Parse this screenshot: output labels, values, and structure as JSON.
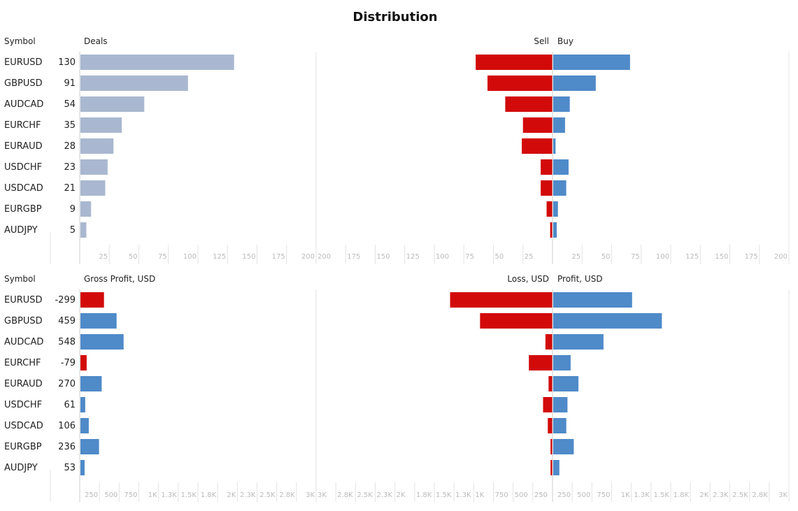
{
  "title": "Distribution",
  "colors": {
    "deals": "#a9b8d0",
    "buy": "#4f8ac9",
    "sell": "#d20a0a",
    "positive": "#4f8ac9",
    "negative": "#d20a0a"
  },
  "chart_data": [
    {
      "type": "bar",
      "symbol_header": "Symbol",
      "left_header": "Deals",
      "right_left_header": "Sell",
      "right_right_header": "Buy",
      "categories": [
        "EURUSD",
        "GBPUSD",
        "AUDCAD",
        "EURCHF",
        "EURAUD",
        "USDCHF",
        "USDCAD",
        "EURGBP",
        "AUDJPY"
      ],
      "values": [
        130,
        91,
        54,
        35,
        28,
        23,
        21,
        9,
        5
      ],
      "value_labels": [
        "130",
        "91",
        "54",
        "35",
        "28",
        "23",
        "21",
        "9",
        "5"
      ],
      "series": [
        {
          "name": "Sell",
          "values": [
            65,
            55,
            40,
            25,
            26,
            10,
            10,
            5,
            2
          ]
        },
        {
          "name": "Buy",
          "values": [
            65,
            36,
            14,
            10,
            2,
            13,
            11,
            4,
            3
          ]
        }
      ],
      "left_xlim": [
        0,
        200
      ],
      "left_ticks": [
        {
          "v": 25,
          "l": "25"
        },
        {
          "v": 50,
          "l": "50"
        },
        {
          "v": 75,
          "l": "75"
        },
        {
          "v": 100,
          "l": "100"
        },
        {
          "v": 125,
          "l": "125"
        },
        {
          "v": 150,
          "l": "150"
        },
        {
          "v": 175,
          "l": "175"
        },
        {
          "v": 200,
          "l": "200"
        }
      ],
      "right_xlim": [
        -200,
        200
      ],
      "right_ticks": [
        {
          "v": -200,
          "l": "200"
        },
        {
          "v": -175,
          "l": "175"
        },
        {
          "v": -150,
          "l": "150"
        },
        {
          "v": -125,
          "l": "125"
        },
        {
          "v": -100,
          "l": "100"
        },
        {
          "v": -75,
          "l": "75"
        },
        {
          "v": -50,
          "l": "50"
        },
        {
          "v": -25,
          "l": "25"
        },
        {
          "v": 25,
          "l": "25"
        },
        {
          "v": 50,
          "l": "50"
        },
        {
          "v": 75,
          "l": "75"
        },
        {
          "v": 100,
          "l": "100"
        },
        {
          "v": 125,
          "l": "125"
        },
        {
          "v": 150,
          "l": "150"
        },
        {
          "v": 175,
          "l": "175"
        },
        {
          "v": 200,
          "l": "200"
        }
      ]
    },
    {
      "type": "bar",
      "symbol_header": "Symbol",
      "left_header": "Gross Profit, USD",
      "right_left_header": "Loss, USD",
      "right_right_header": "Profit, USD",
      "categories": [
        "EURUSD",
        "GBPUSD",
        "AUDCAD",
        "EURCHF",
        "EURAUD",
        "USDCHF",
        "USDCAD",
        "EURGBP",
        "AUDJPY"
      ],
      "values": [
        -299,
        459,
        548,
        -79,
        270,
        61,
        106,
        236,
        53
      ],
      "value_labels": [
        "-299",
        "459",
        "548",
        "-79",
        "270",
        "61",
        "106",
        "236",
        "53"
      ],
      "series": [
        {
          "name": "Loss, USD",
          "values": [
            1300,
            920,
            90,
            300,
            50,
            120,
            60,
            25,
            25
          ]
        },
        {
          "name": "Profit, USD",
          "values": [
            1001,
            1379,
            638,
            221,
            320,
            181,
            166,
            261,
            78
          ]
        }
      ],
      "left_xlim": [
        0,
        3000
      ],
      "left_ticks": [
        {
          "v": 250,
          "l": "250"
        },
        {
          "v": 500,
          "l": "500"
        },
        {
          "v": 750,
          "l": "750"
        },
        {
          "v": 1000,
          "l": "1K"
        },
        {
          "v": 1250,
          "l": "1.3K"
        },
        {
          "v": 1500,
          "l": "1.5K"
        },
        {
          "v": 1750,
          "l": "1.8K"
        },
        {
          "v": 2000,
          "l": "2K"
        },
        {
          "v": 2250,
          "l": "2.3K"
        },
        {
          "v": 2500,
          "l": "2.5K"
        },
        {
          "v": 2750,
          "l": "2.8K"
        },
        {
          "v": 3000,
          "l": "3K"
        }
      ],
      "right_xlim": [
        -3000,
        3000
      ],
      "right_ticks": [
        {
          "v": -3000,
          "l": "3K"
        },
        {
          "v": -2750,
          "l": "2.8K"
        },
        {
          "v": -2500,
          "l": "2.5K"
        },
        {
          "v": -2250,
          "l": "2.3K"
        },
        {
          "v": -2000,
          "l": "2K"
        },
        {
          "v": -1750,
          "l": "1.8K"
        },
        {
          "v": -1500,
          "l": "1.5K"
        },
        {
          "v": -1250,
          "l": "1.3K"
        },
        {
          "v": -1000,
          "l": "1K"
        },
        {
          "v": -750,
          "l": "750"
        },
        {
          "v": -500,
          "l": "500"
        },
        {
          "v": -250,
          "l": "250"
        },
        {
          "v": 250,
          "l": "250"
        },
        {
          "v": 500,
          "l": "500"
        },
        {
          "v": 750,
          "l": "750"
        },
        {
          "v": 1000,
          "l": "1K"
        },
        {
          "v": 1250,
          "l": "1.3K"
        },
        {
          "v": 1500,
          "l": "1.5K"
        },
        {
          "v": 1750,
          "l": "1.8K"
        },
        {
          "v": 2000,
          "l": "2K"
        },
        {
          "v": 2250,
          "l": "2.3K"
        },
        {
          "v": 2500,
          "l": "2.5K"
        },
        {
          "v": 2750,
          "l": "2.8K"
        },
        {
          "v": 3000,
          "l": "3K"
        }
      ]
    }
  ]
}
